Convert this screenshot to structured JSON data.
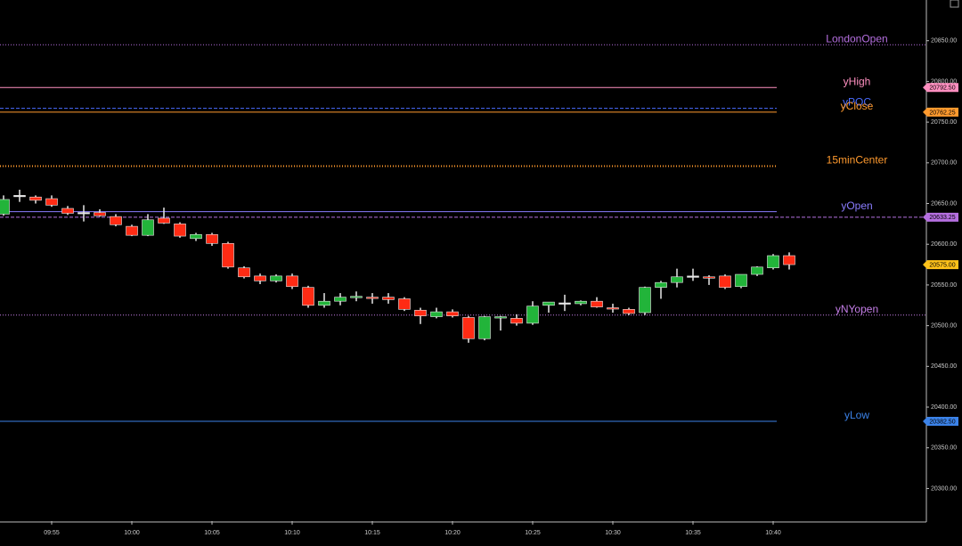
{
  "chart_data": {
    "type": "candlestick",
    "categories": [
      null,
      null,
      null,
      "09:55",
      null,
      null,
      null,
      null,
      "10:00",
      null,
      null,
      null,
      null,
      "10:05",
      null,
      null,
      null,
      null,
      "10:10",
      null,
      null,
      null,
      null,
      "10:15",
      null,
      null,
      null,
      null,
      "10:20",
      null,
      null,
      null,
      null,
      "10:25",
      null,
      null,
      null,
      null,
      "10:30",
      null,
      null,
      null,
      null,
      "10:35",
      null,
      null,
      null,
      null,
      "10:40",
      null
    ],
    "open": [
      20637,
      20660,
      20658,
      20656,
      20644,
      20639,
      20639,
      20634,
      20622,
      20611,
      20632,
      20625,
      20607,
      20612,
      20601,
      20571,
      20561,
      20555,
      20561,
      20547,
      20525,
      20530,
      20535,
      20535,
      20535,
      20533,
      20519,
      20511,
      20517,
      20510,
      20484,
      20510,
      20509,
      20503,
      20525,
      20528,
      20527,
      20530,
      20522,
      20520,
      20516,
      20547,
      20553,
      20561,
      20560,
      20561,
      20548,
      20563,
      20571,
      20586
    ],
    "high": [
      20660,
      20667,
      20660,
      20660,
      20647,
      20648,
      20643,
      20637,
      20624,
      20637,
      20645,
      20627,
      20614,
      20614,
      20603,
      20573,
      20564,
      20563,
      20564,
      20549,
      20540,
      20540,
      20542,
      20540,
      20540,
      20535,
      20522,
      20522,
      20520,
      20512,
      20512,
      20512,
      20514,
      20530,
      20528,
      20538,
      20531,
      20535,
      20527,
      20522,
      20548,
      20555,
      20570,
      20570,
      20562,
      20563,
      20563,
      20573,
      20588,
      20590
    ],
    "low": [
      20635,
      20652,
      20650,
      20646,
      20636,
      20628,
      20634,
      20622,
      20610,
      20610,
      20625,
      20608,
      20604,
      20598,
      20570,
      20558,
      20551,
      20553,
      20545,
      20522,
      20522,
      20525,
      20530,
      20527,
      20527,
      20518,
      20502,
      20509,
      20510,
      20479,
      20482,
      20494,
      20500,
      20501,
      20516,
      20518,
      20525,
      20522,
      20516,
      20513,
      20513,
      20533,
      20547,
      20555,
      20550,
      20545,
      20546,
      20561,
      20569,
      20569
    ],
    "close": [
      20655,
      20660,
      20654,
      20648,
      20638,
      20639,
      20635,
      20624,
      20611,
      20630,
      20626,
      20610,
      20612,
      20601,
      20572,
      20560,
      20555,
      20561,
      20548,
      20525,
      20530,
      20535,
      20536,
      20534,
      20532,
      20520,
      20512,
      20517,
      20512,
      20484,
      20511,
      20511,
      20503,
      20524,
      20529,
      20528,
      20530,
      20523,
      20521,
      20515,
      20547,
      20553,
      20560,
      20561,
      20559,
      20547,
      20563,
      20572,
      20586,
      20575
    ],
    "up_color": "#22b43a",
    "down_color": "#ff2b14",
    "flat_color": "#e8e8e8",
    "levels": [
      {
        "name": "LondonOpen",
        "value": 20845,
        "color": "#b56fe0",
        "style": "dotted"
      },
      {
        "name": "yHigh",
        "value": 20792.5,
        "value_label": "20792.50",
        "color": "#ff8fc0",
        "style": "solid"
      },
      {
        "name": "yPOC",
        "value": 20767,
        "color": "#4a6cff",
        "style": "dashed"
      },
      {
        "name": "yClose",
        "value": 20762.25,
        "value_label": "20762.25",
        "color": "#ff9a2e",
        "style": "solid"
      },
      {
        "name": "15minCenter",
        "value": 20696,
        "color": "#ff9a2e",
        "style": "dotted"
      },
      {
        "name": "yOpen",
        "value": 20640,
        "color": "#8a7cff",
        "style": "solid"
      },
      {
        "name": null,
        "value": 20633.25,
        "value_label": "20633.25",
        "color": "#b56fe0",
        "style": "dashed"
      },
      {
        "name": "yNYopen",
        "value": 20513,
        "color": "#c57ee8",
        "style": "dotted"
      },
      {
        "name": "yLow",
        "value": 20382.5,
        "value_label": "20382.50",
        "color": "#3b82e8",
        "style": "solid"
      }
    ],
    "last_price": 20575,
    "last_price_label": "20575.00",
    "last_price_color": "#ffc21a",
    "ylim": [
      20260,
      20900
    ],
    "yticks": [
      {
        "value": 20300,
        "label": "20300.00"
      },
      {
        "value": 20350,
        "label": "20350.00"
      },
      {
        "value": 20400,
        "label": "20400.00"
      },
      {
        "value": 20450,
        "label": "20450.00"
      },
      {
        "value": 20500,
        "label": "20500.00"
      },
      {
        "value": 20550,
        "label": "20550.00"
      },
      {
        "value": 20600,
        "label": "20600.00"
      },
      {
        "value": 20650,
        "label": "20650.00"
      },
      {
        "value": 20700,
        "label": "20700.00"
      },
      {
        "value": 20750,
        "label": "20750.00"
      },
      {
        "value": 20800,
        "label": "20800.00"
      },
      {
        "value": 20850,
        "label": "20850.00"
      }
    ]
  }
}
